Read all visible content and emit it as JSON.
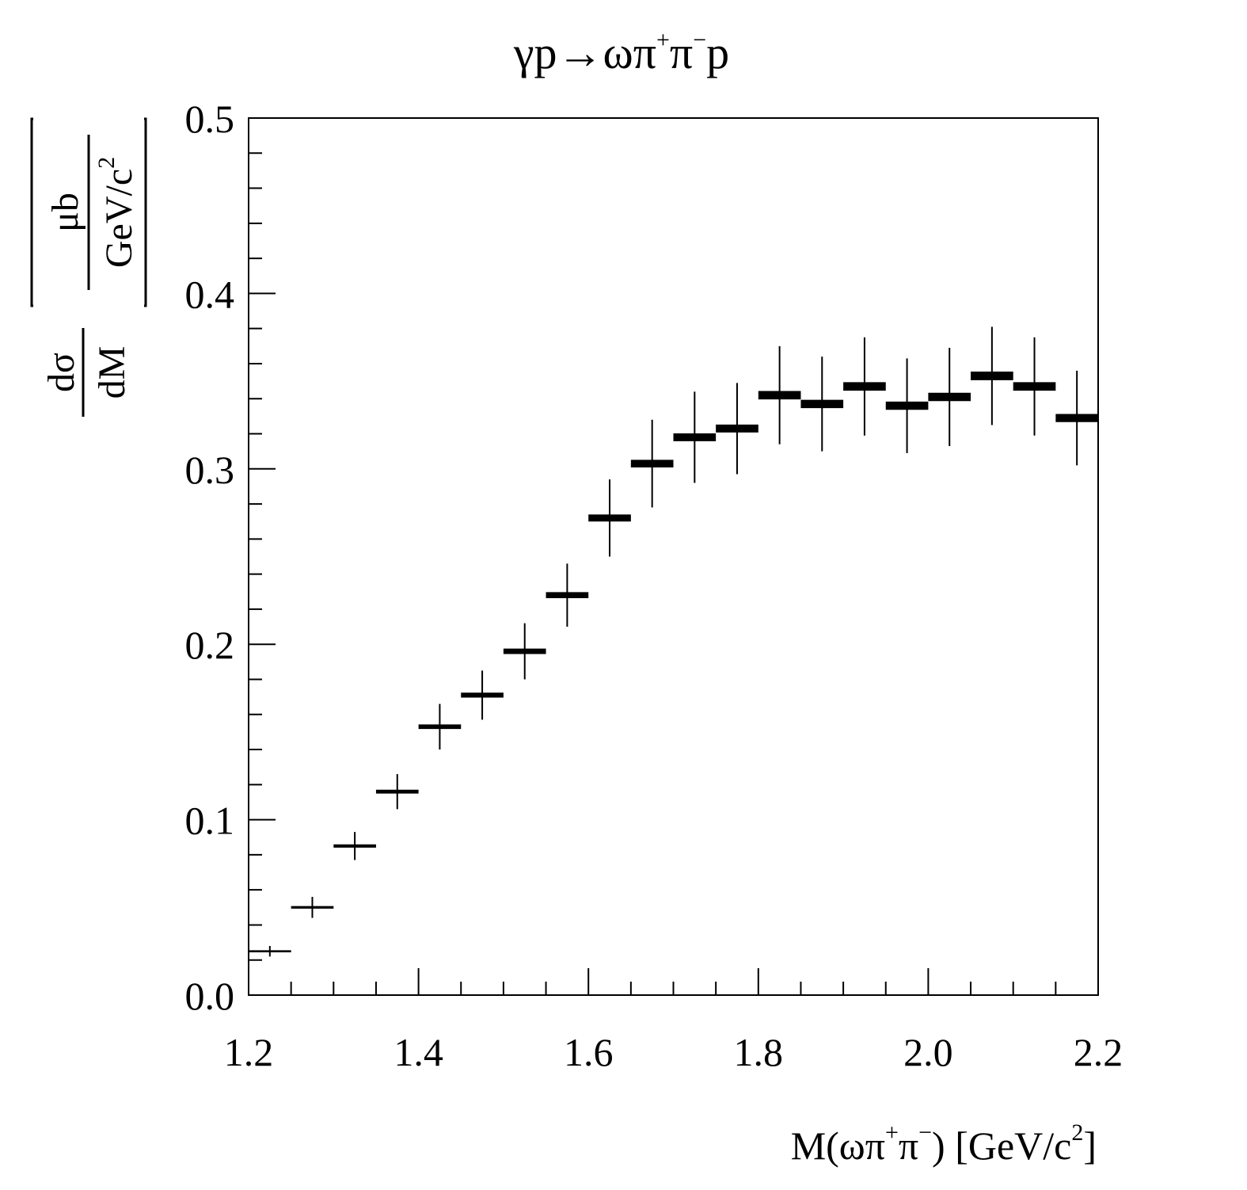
{
  "chart_data": {
    "type": "scatter",
    "style": "histogram points with error bars",
    "title_parts": {
      "reaction_lhs": "γp",
      "arrow": "→",
      "reaction_rhs": "ωπ",
      "pi_plus_sup": "+",
      "pi_minus": "π",
      "pi_minus_sup": "−",
      "proton": "p"
    },
    "xlabel_parts": {
      "main": "M(ωπ",
      "sup_plus": "+",
      "pi": "π",
      "sup_minus": "−",
      "close": ") [GeV/c",
      "sup2": "2",
      "end": "]"
    },
    "ylabel_parts": {
      "numerator": "dσ",
      "denominator": "dM",
      "unit_numerator": "μb",
      "unit_denominator": "GeV/c",
      "unit_sup": "2"
    },
    "xlim": [
      1.2,
      2.2
    ],
    "ylim": [
      0.0,
      0.5
    ],
    "xticks": [
      "1.2",
      "1.4",
      "1.6",
      "1.8",
      "2.0",
      "2.2"
    ],
    "yticks": [
      "0.0",
      "0.1",
      "0.2",
      "0.3",
      "0.4",
      "0.5"
    ],
    "grid": false,
    "bin_width": 0.05,
    "x": [
      1.225,
      1.275,
      1.325,
      1.375,
      1.425,
      1.475,
      1.525,
      1.575,
      1.625,
      1.675,
      1.725,
      1.775,
      1.825,
      1.875,
      1.925,
      1.975,
      2.025,
      2.075,
      2.125,
      2.175
    ],
    "y": [
      0.025,
      0.05,
      0.085,
      0.116,
      0.153,
      0.171,
      0.196,
      0.228,
      0.272,
      0.303,
      0.318,
      0.323,
      0.342,
      0.337,
      0.347,
      0.336,
      0.341,
      0.353,
      0.347,
      0.329
    ],
    "y_err": [
      0.003,
      0.006,
      0.008,
      0.01,
      0.013,
      0.014,
      0.016,
      0.018,
      0.022,
      0.025,
      0.026,
      0.026,
      0.028,
      0.027,
      0.028,
      0.027,
      0.028,
      0.028,
      0.028,
      0.027
    ]
  }
}
